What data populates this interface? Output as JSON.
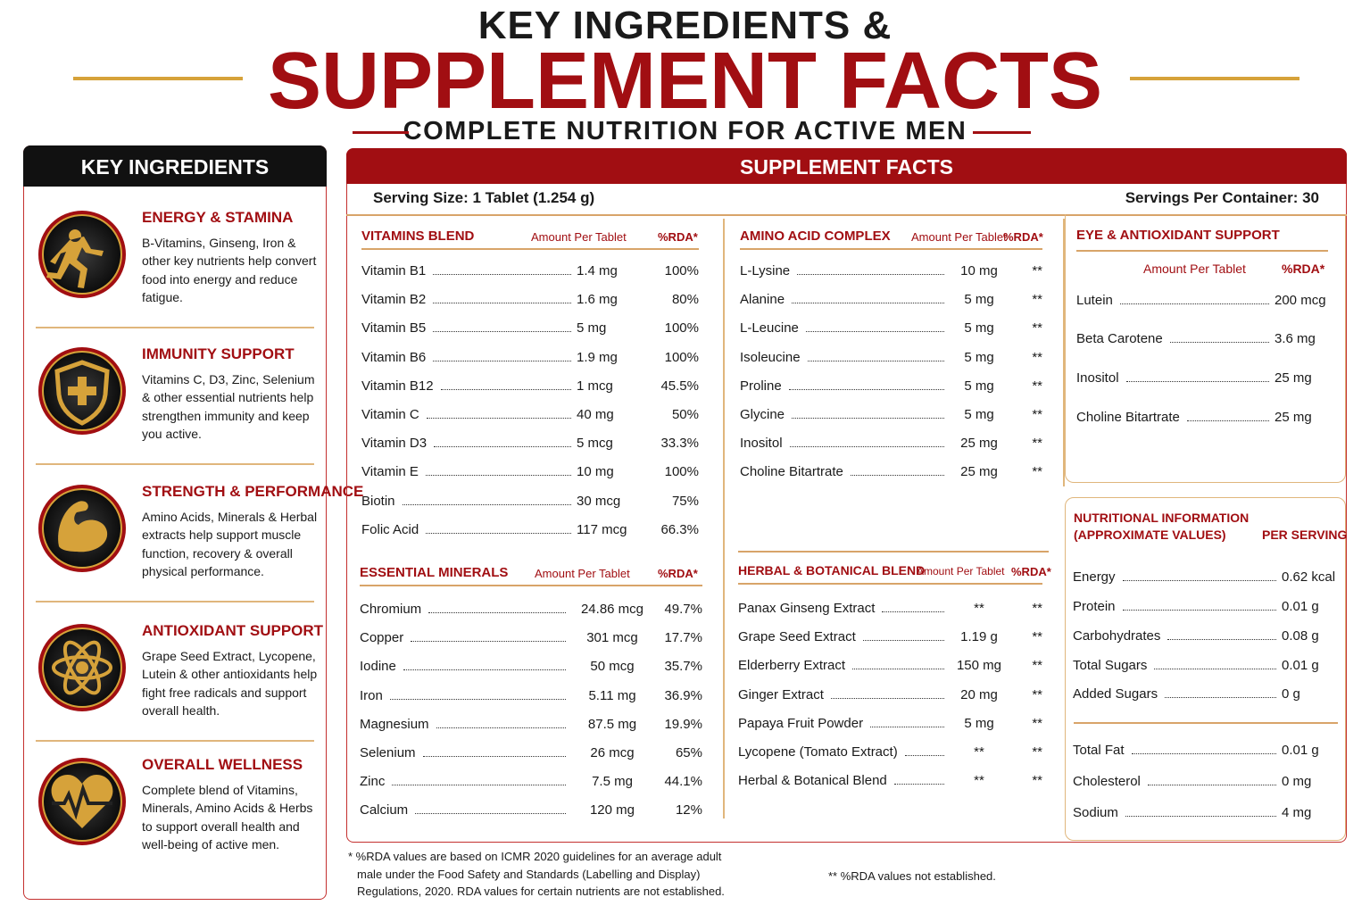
{
  "header": {
    "line1": "KEY INGREDIENTS &",
    "title": "SUPPLEMENT FACTS",
    "subtitle": "COMPLETE NUTRITION FOR ACTIVE MEN"
  },
  "key_ingredients": {
    "heading": "KEY INGREDIENTS",
    "items": [
      {
        "title": "ENERGY & STAMINA",
        "text": "B-Vitamins, Ginseng, Iron & other key nutrients help convert food into energy and reduce fatigue."
      },
      {
        "title": "IMMUNITY SUPPORT",
        "text": "Vitamins C, D3, Zinc, Selenium & other essential nutrients help strengthen immunity and keep you active."
      },
      {
        "title": "STRENGTH & PERFORMANCE",
        "text": "Amino Acids, Minerals & Herbal extracts help support muscle function, recovery & overall physical performance."
      },
      {
        "title": "ANTIOXIDANT SUPPORT",
        "text": "Grape Seed Extract, Lycopene, Lutein & other antioxidants help fight free radicals and support overall health."
      },
      {
        "title": "OVERALL WELLNESS",
        "text": "Complete blend of Vitamins, Minerals, Amino Acids & Herbs to support overall health and well-being of active men."
      }
    ]
  },
  "supplement_facts": {
    "heading": "SUPPLEMENT FACTS",
    "serving_size": "Serving Size: 1 Tablet (1.254 g)",
    "servings": "Servings Per Container: 30",
    "vitamins": {
      "title": "VITAMINS BLEND",
      "amount_header": "Amount Per Tablet",
      "rda_header": "%RDA*",
      "rows": [
        [
          "Vitamin B1",
          "1.4 mg",
          "100%"
        ],
        [
          "Vitamin B2",
          "1.6 mg",
          "80%"
        ],
        [
          "Vitamin B5",
          "5 mg",
          "100%"
        ],
        [
          "Vitamin B6",
          "1.9 mg",
          "100%"
        ],
        [
          "Vitamin B12",
          "1 mcg",
          "45.5%"
        ],
        [
          "Vitamin C",
          "40 mg",
          "50%"
        ],
        [
          "Vitamin D3",
          "5 mcg",
          "33.3%"
        ],
        [
          "Vitamin E",
          "10 mg",
          "100%"
        ],
        [
          "Biotin",
          "30 mcg",
          "75%"
        ],
        [
          "Folic Acid",
          "117 mcg",
          "66.3%"
        ]
      ]
    },
    "minerals": {
      "title": "ESSENTIAL MINERALS",
      "amount_header": "Amount Per Tablet",
      "rda_header": "%RDA*",
      "rows": [
        [
          "Chromium",
          "24.86 mcg",
          "49.7%"
        ],
        [
          "Copper",
          "301 mcg",
          "17.7%"
        ],
        [
          "Iodine",
          "50 mcg",
          "35.7%"
        ],
        [
          "Iron",
          "5.11 mg",
          "36.9%"
        ],
        [
          "Magnesium",
          "87.5 mg",
          "19.9%"
        ],
        [
          "Selenium",
          "26 mcg",
          "65%"
        ],
        [
          "Zinc",
          "7.5 mg",
          "44.1%"
        ],
        [
          "Calcium",
          "120 mg",
          "12%"
        ]
      ]
    },
    "amino": {
      "title": "AMINO ACID COMPLEX",
      "amount_header": "Amount Per Tablet",
      "rda_header": "%RDA*",
      "rows": [
        [
          "L-Lysine",
          "10 mg",
          "**"
        ],
        [
          "Alanine",
          "5 mg",
          "**"
        ],
        [
          "L-Leucine",
          "5 mg",
          "**"
        ],
        [
          "Isoleucine",
          "5 mg",
          "**"
        ],
        [
          "Proline",
          "5 mg",
          "**"
        ],
        [
          "Glycine",
          "5 mg",
          "**"
        ],
        [
          "Inositol",
          "25 mg",
          "**"
        ],
        [
          "Choline Bitartrate",
          "25 mg",
          "**"
        ]
      ]
    },
    "herbal": {
      "title": "HERBAL & BOTANICAL BLEND",
      "amount_header": "Amount Per Tablet",
      "rda_header": "%RDA*",
      "rows": [
        [
          "Panax Ginseng Extract",
          "**",
          "**"
        ],
        [
          "Grape Seed Extract",
          "1.19 g",
          "**"
        ],
        [
          "Elderberry Extract",
          "150 mg",
          "**"
        ],
        [
          "Ginger Extract",
          "20 mg",
          "**"
        ],
        [
          "Papaya Fruit Powder",
          "5 mg",
          "**"
        ],
        [
          "Lycopene (Tomato Extract)",
          "**",
          "**"
        ],
        [
          "Herbal & Botanical Blend",
          "**",
          "**"
        ]
      ]
    },
    "eye": {
      "title": "EYE & ANTIOXIDANT SUPPORT",
      "amount_header": "Amount Per Tablet",
      "rda_header": "%RDA*",
      "rows": [
        [
          "Lutein",
          "200 mcg"
        ],
        [
          "Beta Carotene",
          "3.6 mg"
        ],
        [
          "Inositol",
          "25 mg"
        ],
        [
          "Choline Bitartrate",
          "25 mg"
        ]
      ]
    },
    "nutrition": {
      "title": "NUTRITIONAL INFORMATION",
      "subtitle": "(APPROXIMATE VALUES)",
      "per": "PER SERVING",
      "rows": [
        [
          "Energy",
          "0.62 kcal"
        ],
        [
          "Protein",
          "0.01 g"
        ],
        [
          "Carbohydrates",
          "0.08 g"
        ],
        [
          "Total Sugars",
          "0.01 g"
        ],
        [
          "Added Sugars",
          "0 g"
        ]
      ],
      "rows2": [
        [
          "Total Fat",
          "0.01 g"
        ],
        [
          "Cholesterol",
          "0 mg"
        ],
        [
          "Sodium",
          "4 mg"
        ]
      ]
    },
    "footnote": [
      "* %RDA values are based on ICMR 2020 guidelines for an average adult",
      "male under the Food Safety and Standards (Labelling and Display)",
      "Regulations, 2020. RDA values for certain nutrients are not established."
    ],
    "footnote2": "** %RDA values not established."
  }
}
